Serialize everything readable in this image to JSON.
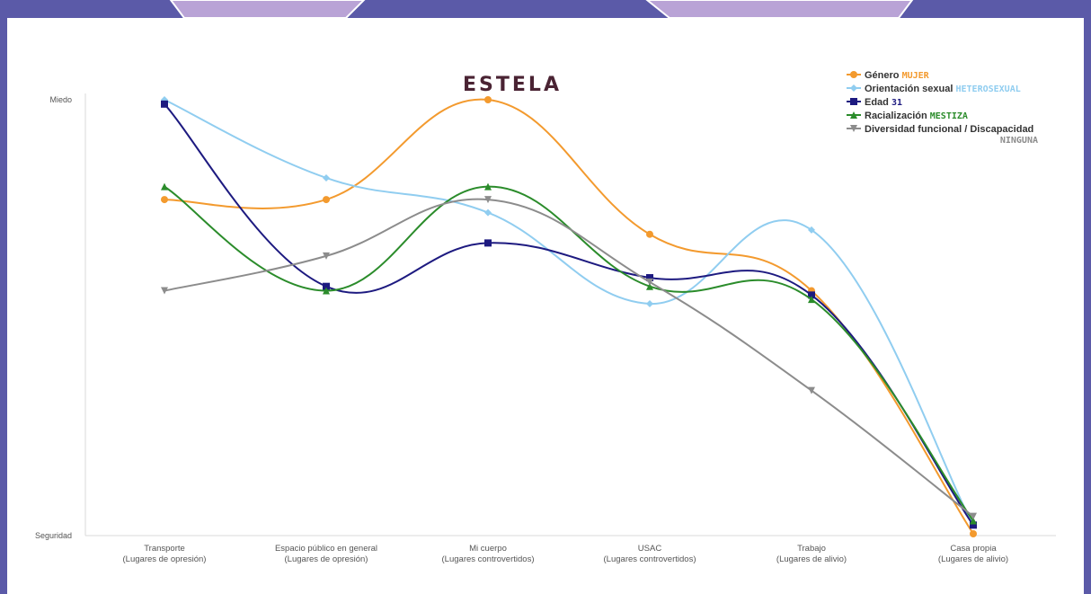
{
  "chart_data": {
    "type": "line",
    "title": "ESTELA",
    "y_tick_labels": {
      "top": "Miedo",
      "bottom": "Seguridad"
    },
    "ylim": [
      0,
      10
    ],
    "categories": [
      [
        "Transporte",
        "(Lugares de opresión)"
      ],
      [
        "Espacio público en general",
        "(Lugares de opresión)"
      ],
      [
        "Mi cuerpo",
        "(Lugares controvertidos)"
      ],
      [
        "USAC",
        "(Lugares controvertidos)"
      ],
      [
        "Trabajo",
        "(Lugares de alivio)"
      ],
      [
        "Casa propia",
        "(Lugares de alivio)"
      ]
    ],
    "series": [
      {
        "label": "Género",
        "value_label": "MUJER",
        "color": "#f39a2e",
        "marker": "circle",
        "values": [
          7.7,
          7.7,
          10.0,
          6.9,
          5.6,
          0.0
        ]
      },
      {
        "label": "Orientación sexual",
        "value_label": "HETEROSEXUAL",
        "color": "#90cdf0",
        "marker": "diamond",
        "values": [
          10.0,
          8.2,
          7.4,
          5.3,
          7.0,
          0.2
        ]
      },
      {
        "label": "Edad",
        "value_label": "31",
        "color": "#1d1a80",
        "marker": "square",
        "values": [
          9.9,
          5.7,
          6.7,
          5.9,
          5.5,
          0.2
        ]
      },
      {
        "label": "Racialización",
        "value_label": "MESTIZA",
        "color": "#2b8c2b",
        "marker": "triangle",
        "values": [
          8.0,
          5.6,
          8.0,
          5.7,
          5.4,
          0.3
        ]
      },
      {
        "label": "Diversidad funcional / Discapacidad",
        "value_label": "NINGUNA",
        "color": "#8c8c8c",
        "marker": "triangle-down",
        "values": [
          5.6,
          6.4,
          7.7,
          5.8,
          3.3,
          0.4
        ]
      }
    ],
    "legend_position": "top-right",
    "grid": false
  }
}
